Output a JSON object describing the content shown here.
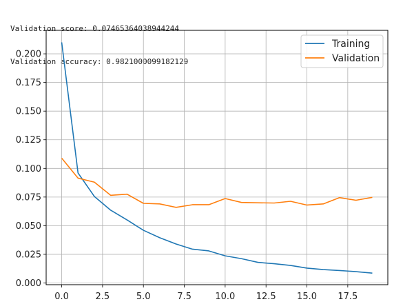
{
  "console": {
    "line1": "Validation score: 0.07465364038944244",
    "line2": "Validation accuracy: 0.9821000099182129"
  },
  "chart_data": {
    "type": "line",
    "x": [
      0,
      1,
      2,
      3,
      4,
      5,
      6,
      7,
      8,
      9,
      10,
      11,
      12,
      13,
      14,
      15,
      16,
      17,
      18,
      19
    ],
    "series": [
      {
        "name": "Training",
        "color": "#1f77b4",
        "values": [
          0.21,
          0.096,
          0.0755,
          0.0635,
          0.055,
          0.046,
          0.0395,
          0.034,
          0.0295,
          0.028,
          0.0237,
          0.0212,
          0.018,
          0.0168,
          0.0153,
          0.013,
          0.0117,
          0.0109,
          0.0099,
          0.0086
        ]
      },
      {
        "name": "Validation",
        "color": "#ff7f0e",
        "values": [
          0.109,
          0.0915,
          0.088,
          0.0765,
          0.0775,
          0.0695,
          0.069,
          0.066,
          0.0683,
          0.0683,
          0.0737,
          0.0703,
          0.07,
          0.0698,
          0.0713,
          0.068,
          0.069,
          0.0745,
          0.0722,
          0.0747
        ]
      }
    ],
    "xlim": [
      -0.95,
      19.95
    ],
    "ylim": [
      -0.0015,
      0.2205
    ],
    "xticks": [
      "0.0",
      "2.5",
      "5.0",
      "7.5",
      "10.0",
      "12.5",
      "15.0",
      "17.5"
    ],
    "xtick_values": [
      0,
      2.5,
      5,
      7.5,
      10,
      12.5,
      15,
      17.5
    ],
    "yticks": [
      "0.000",
      "0.025",
      "0.050",
      "0.075",
      "0.100",
      "0.125",
      "0.150",
      "0.175",
      "0.200"
    ],
    "ytick_values": [
      0,
      0.025,
      0.05,
      0.075,
      0.1,
      0.125,
      0.15,
      0.175,
      0.2
    ],
    "grid": true,
    "legend_position": "top-right"
  }
}
